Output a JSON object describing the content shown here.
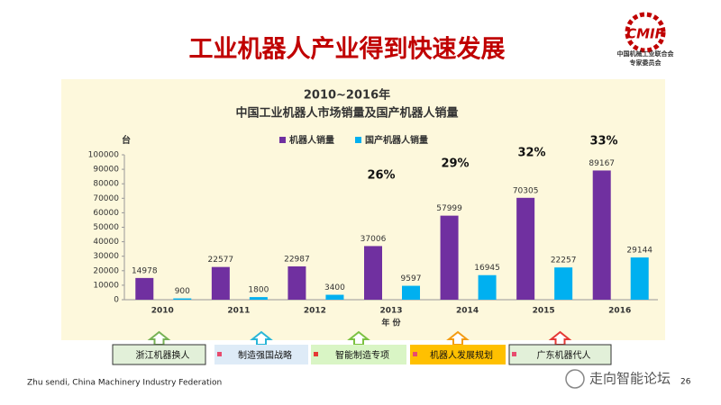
{
  "slide_title": "工业机器人产业得到快速发展",
  "logo": {
    "mark": "CMIF",
    "lines": [
      "中国机械工业联合会",
      "专家委员会"
    ]
  },
  "chart_data": {
    "type": "bar",
    "title": "2010~2016年",
    "subtitle": "中国工业机器人市场销量及国产机器人销量",
    "y_label": "台",
    "x_label": "年 份",
    "categories": [
      "2010",
      "2011",
      "2012",
      "2013",
      "2014",
      "2015",
      "2016"
    ],
    "series": [
      {
        "name": "机器人销量",
        "color": "#7030a0",
        "values": [
          14978,
          22577,
          22987,
          37006,
          57999,
          70305,
          89167
        ]
      },
      {
        "name": "国产机器人销量",
        "color": "#00b0f0",
        "values": [
          900,
          1800,
          3400,
          9597,
          16945,
          22257,
          29144
        ]
      }
    ],
    "ylim": [
      0,
      100000
    ],
    "yticks": [
      0,
      10000,
      20000,
      30000,
      40000,
      50000,
      60000,
      70000,
      80000,
      90000,
      100000
    ],
    "grid": false,
    "legend": "top",
    "annotations": [
      "26%",
      "29%",
      "32%",
      "33%"
    ]
  },
  "milestones": [
    "浙江机器换人",
    "制造强国战略",
    "智能制造专项",
    "机器人发展规划",
    "广东机器代人"
  ],
  "footer": "Zhu sendi, China Machinery Industry Federation",
  "page_number": "26",
  "watermark": "走向智能论坛"
}
